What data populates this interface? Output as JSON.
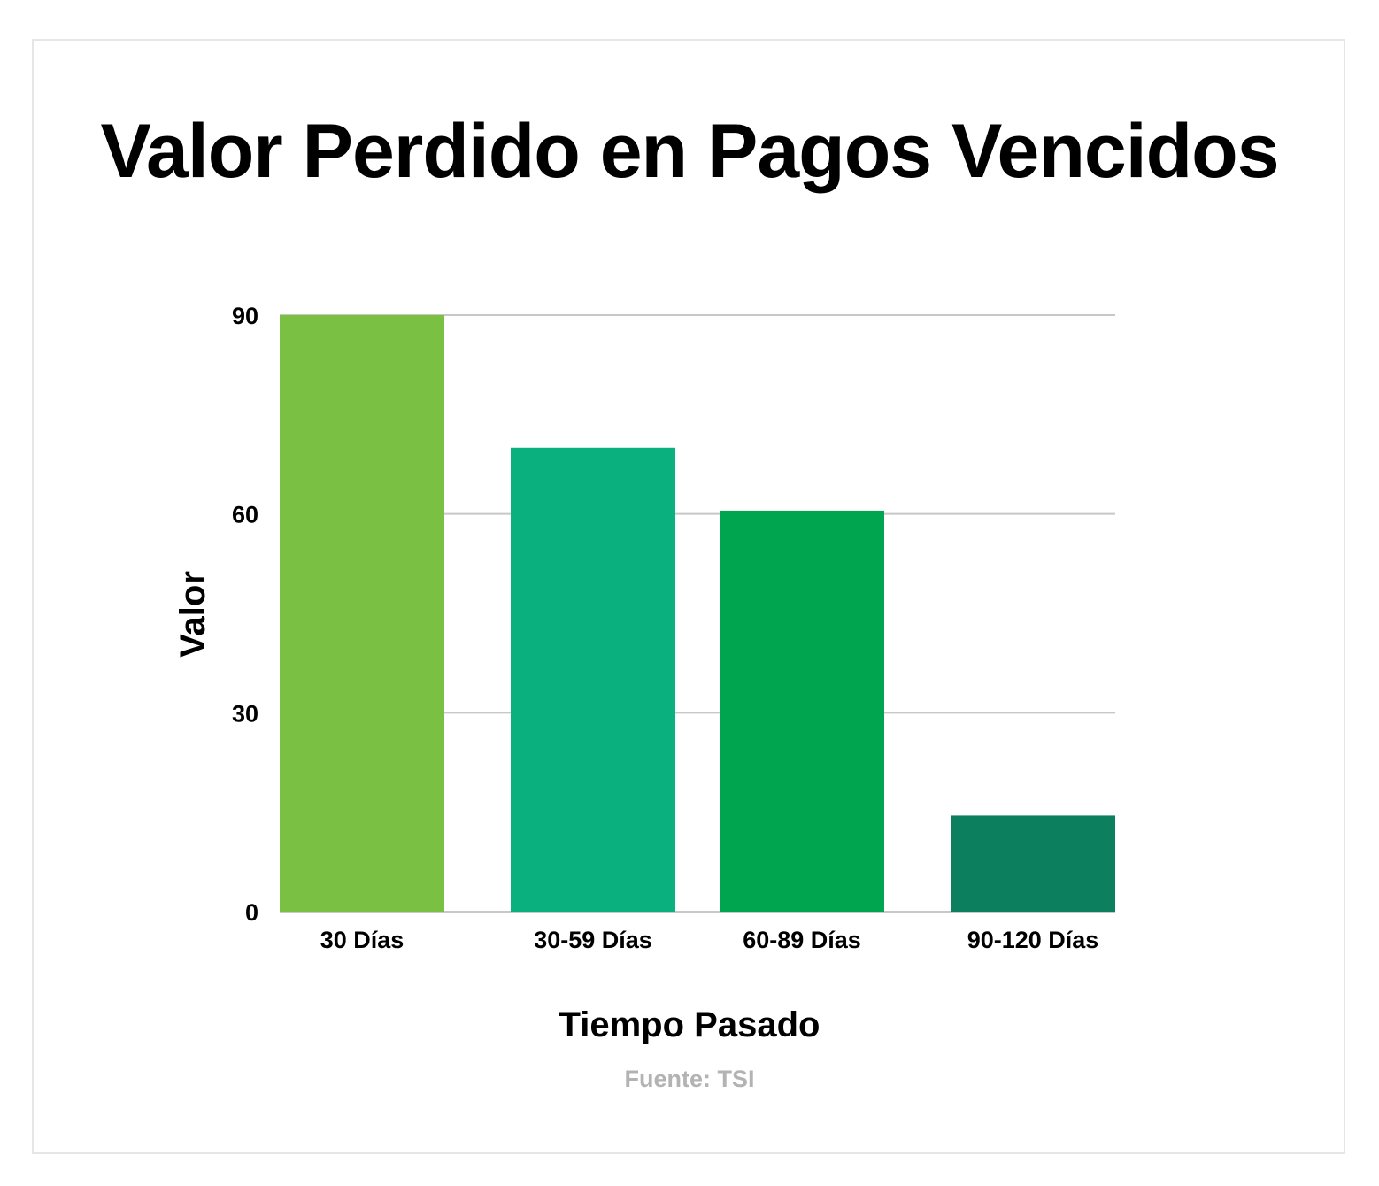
{
  "chart_data": {
    "type": "bar",
    "title": "Valor Perdido en Pagos Vencidos",
    "xlabel": "Tiempo Pasado",
    "ylabel": "Valor",
    "source": "Fuente: TSI",
    "categories": [
      "30 Días",
      "30-59 Días",
      "60-89 Días",
      "90-120 Días"
    ],
    "values": [
      90,
      70,
      60.5,
      14.5
    ],
    "colors": [
      "#79c043",
      "#0bb07f",
      "#00a54f",
      "#0c805e"
    ],
    "ylim": [
      0,
      90
    ],
    "yticks": [
      0,
      30,
      60,
      90
    ],
    "grid": true,
    "legend": "none"
  }
}
